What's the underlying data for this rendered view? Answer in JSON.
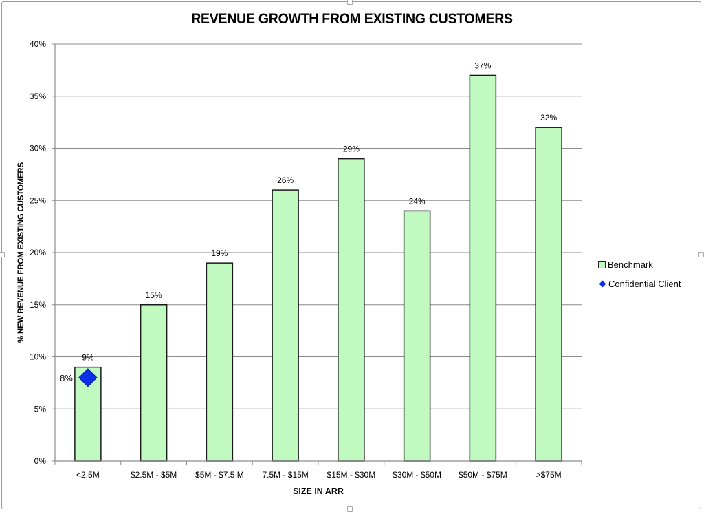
{
  "chart_data": {
    "type": "bar",
    "title": "REVENUE GROWTH FROM EXISTING CUSTOMERS",
    "xlabel": "SIZE IN ARR",
    "ylabel": "% NEW REVENUE FROM EXISTING CUSTOMERS",
    "ylim": [
      0,
      40
    ],
    "yticks": [
      0,
      5,
      10,
      15,
      20,
      25,
      30,
      35,
      40
    ],
    "ytick_labels": [
      "0%",
      "5%",
      "10%",
      "15%",
      "20%",
      "25%",
      "30%",
      "35%",
      "40%"
    ],
    "grid": true,
    "categories": [
      "<2.5M",
      "$2.5M - $5M",
      "$5M - $7.5 M",
      "7.5M - $15M",
      "$15M - $30M",
      "$30M - $50M",
      "$50M - $75M",
      ">$75M"
    ],
    "series": [
      {
        "name": "Benchmark",
        "kind": "bar",
        "color": "#c0fac0",
        "values": [
          9,
          15,
          19,
          26,
          29,
          24,
          37,
          32
        ],
        "labels": [
          "9%",
          "15%",
          "19%",
          "26%",
          "29%",
          "24%",
          "37%",
          "32%"
        ]
      },
      {
        "name": "Confidential Client",
        "kind": "scatter",
        "marker": "diamond",
        "color": "#0b2fe8",
        "points": [
          {
            "category": "<2.5M",
            "value": 8,
            "label": "8%"
          }
        ]
      }
    ],
    "legend": {
      "position": "right",
      "entries": [
        "Benchmark",
        "Confidential Client"
      ]
    }
  }
}
